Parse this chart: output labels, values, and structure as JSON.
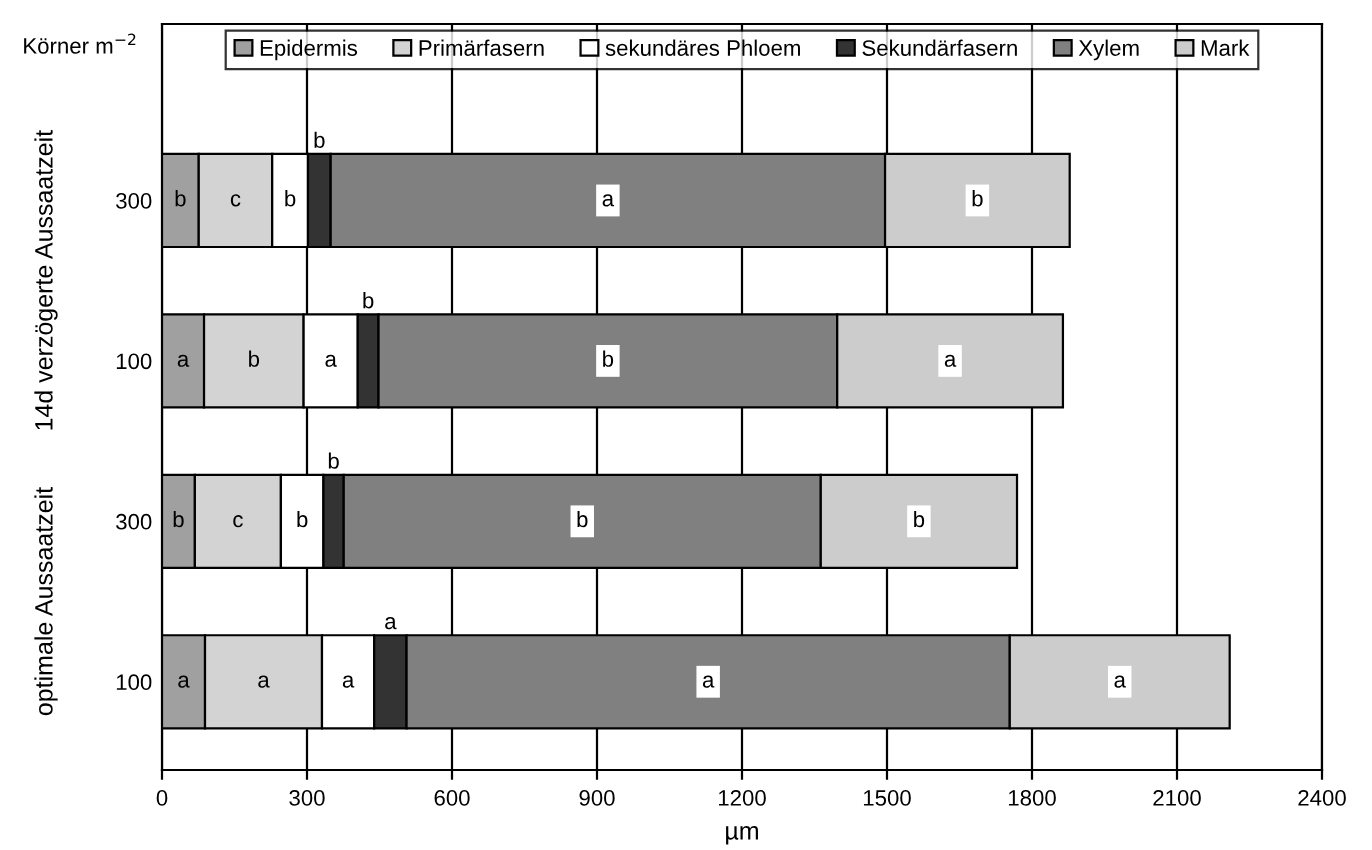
{
  "chart_data": {
    "type": "bar",
    "orientation": "horizontal",
    "stacked": true,
    "xlabel": "µm",
    "categories": [
      "300",
      "100",
      "300",
      "100"
    ],
    "series": [
      {
        "name": "Epidermis",
        "color": "#a0a0a0",
        "values": [
          76,
          87,
          68,
          89
        ],
        "value_labels": [
          "b",
          "a",
          "b",
          "a"
        ]
      },
      {
        "name": "Primärfasern",
        "color": "#d3d3d3",
        "values": [
          152,
          206,
          178,
          242
        ],
        "value_labels": [
          "c",
          "b",
          "c",
          "a"
        ]
      },
      {
        "name": "sekundäres Phloem",
        "color": "#ffffff",
        "values": [
          74,
          112,
          88,
          108
        ],
        "value_labels": [
          "b",
          "a",
          "b",
          "a"
        ]
      },
      {
        "name": "Sekundärfasern",
        "color": "#333333",
        "values": [
          47,
          43,
          42,
          67
        ],
        "value_labels": [
          "b",
          "b",
          "b",
          "a"
        ]
      },
      {
        "name": "Xylem",
        "color": "#808080",
        "values": [
          1147,
          949,
          987,
          1248
        ],
        "value_labels": [
          "a",
          "b",
          "b",
          "a"
        ]
      },
      {
        "name": "Mark",
        "color": "#cccccc",
        "values": [
          382,
          467,
          406,
          455
        ],
        "value_labels": [
          "b",
          "a",
          "b",
          "a"
        ]
      }
    ],
    "xlim": [
      0,
      2400
    ],
    "xticks": [
      0,
      300,
      600,
      900,
      1200,
      1500,
      1800,
      2100,
      2400
    ],
    "grid": "x",
    "legend": "top",
    "annotations": [
      "Körner m$^{−2}$",
      "14d verzögerte Aussaatzeit",
      "optimale Aussaatzeit"
    ]
  }
}
